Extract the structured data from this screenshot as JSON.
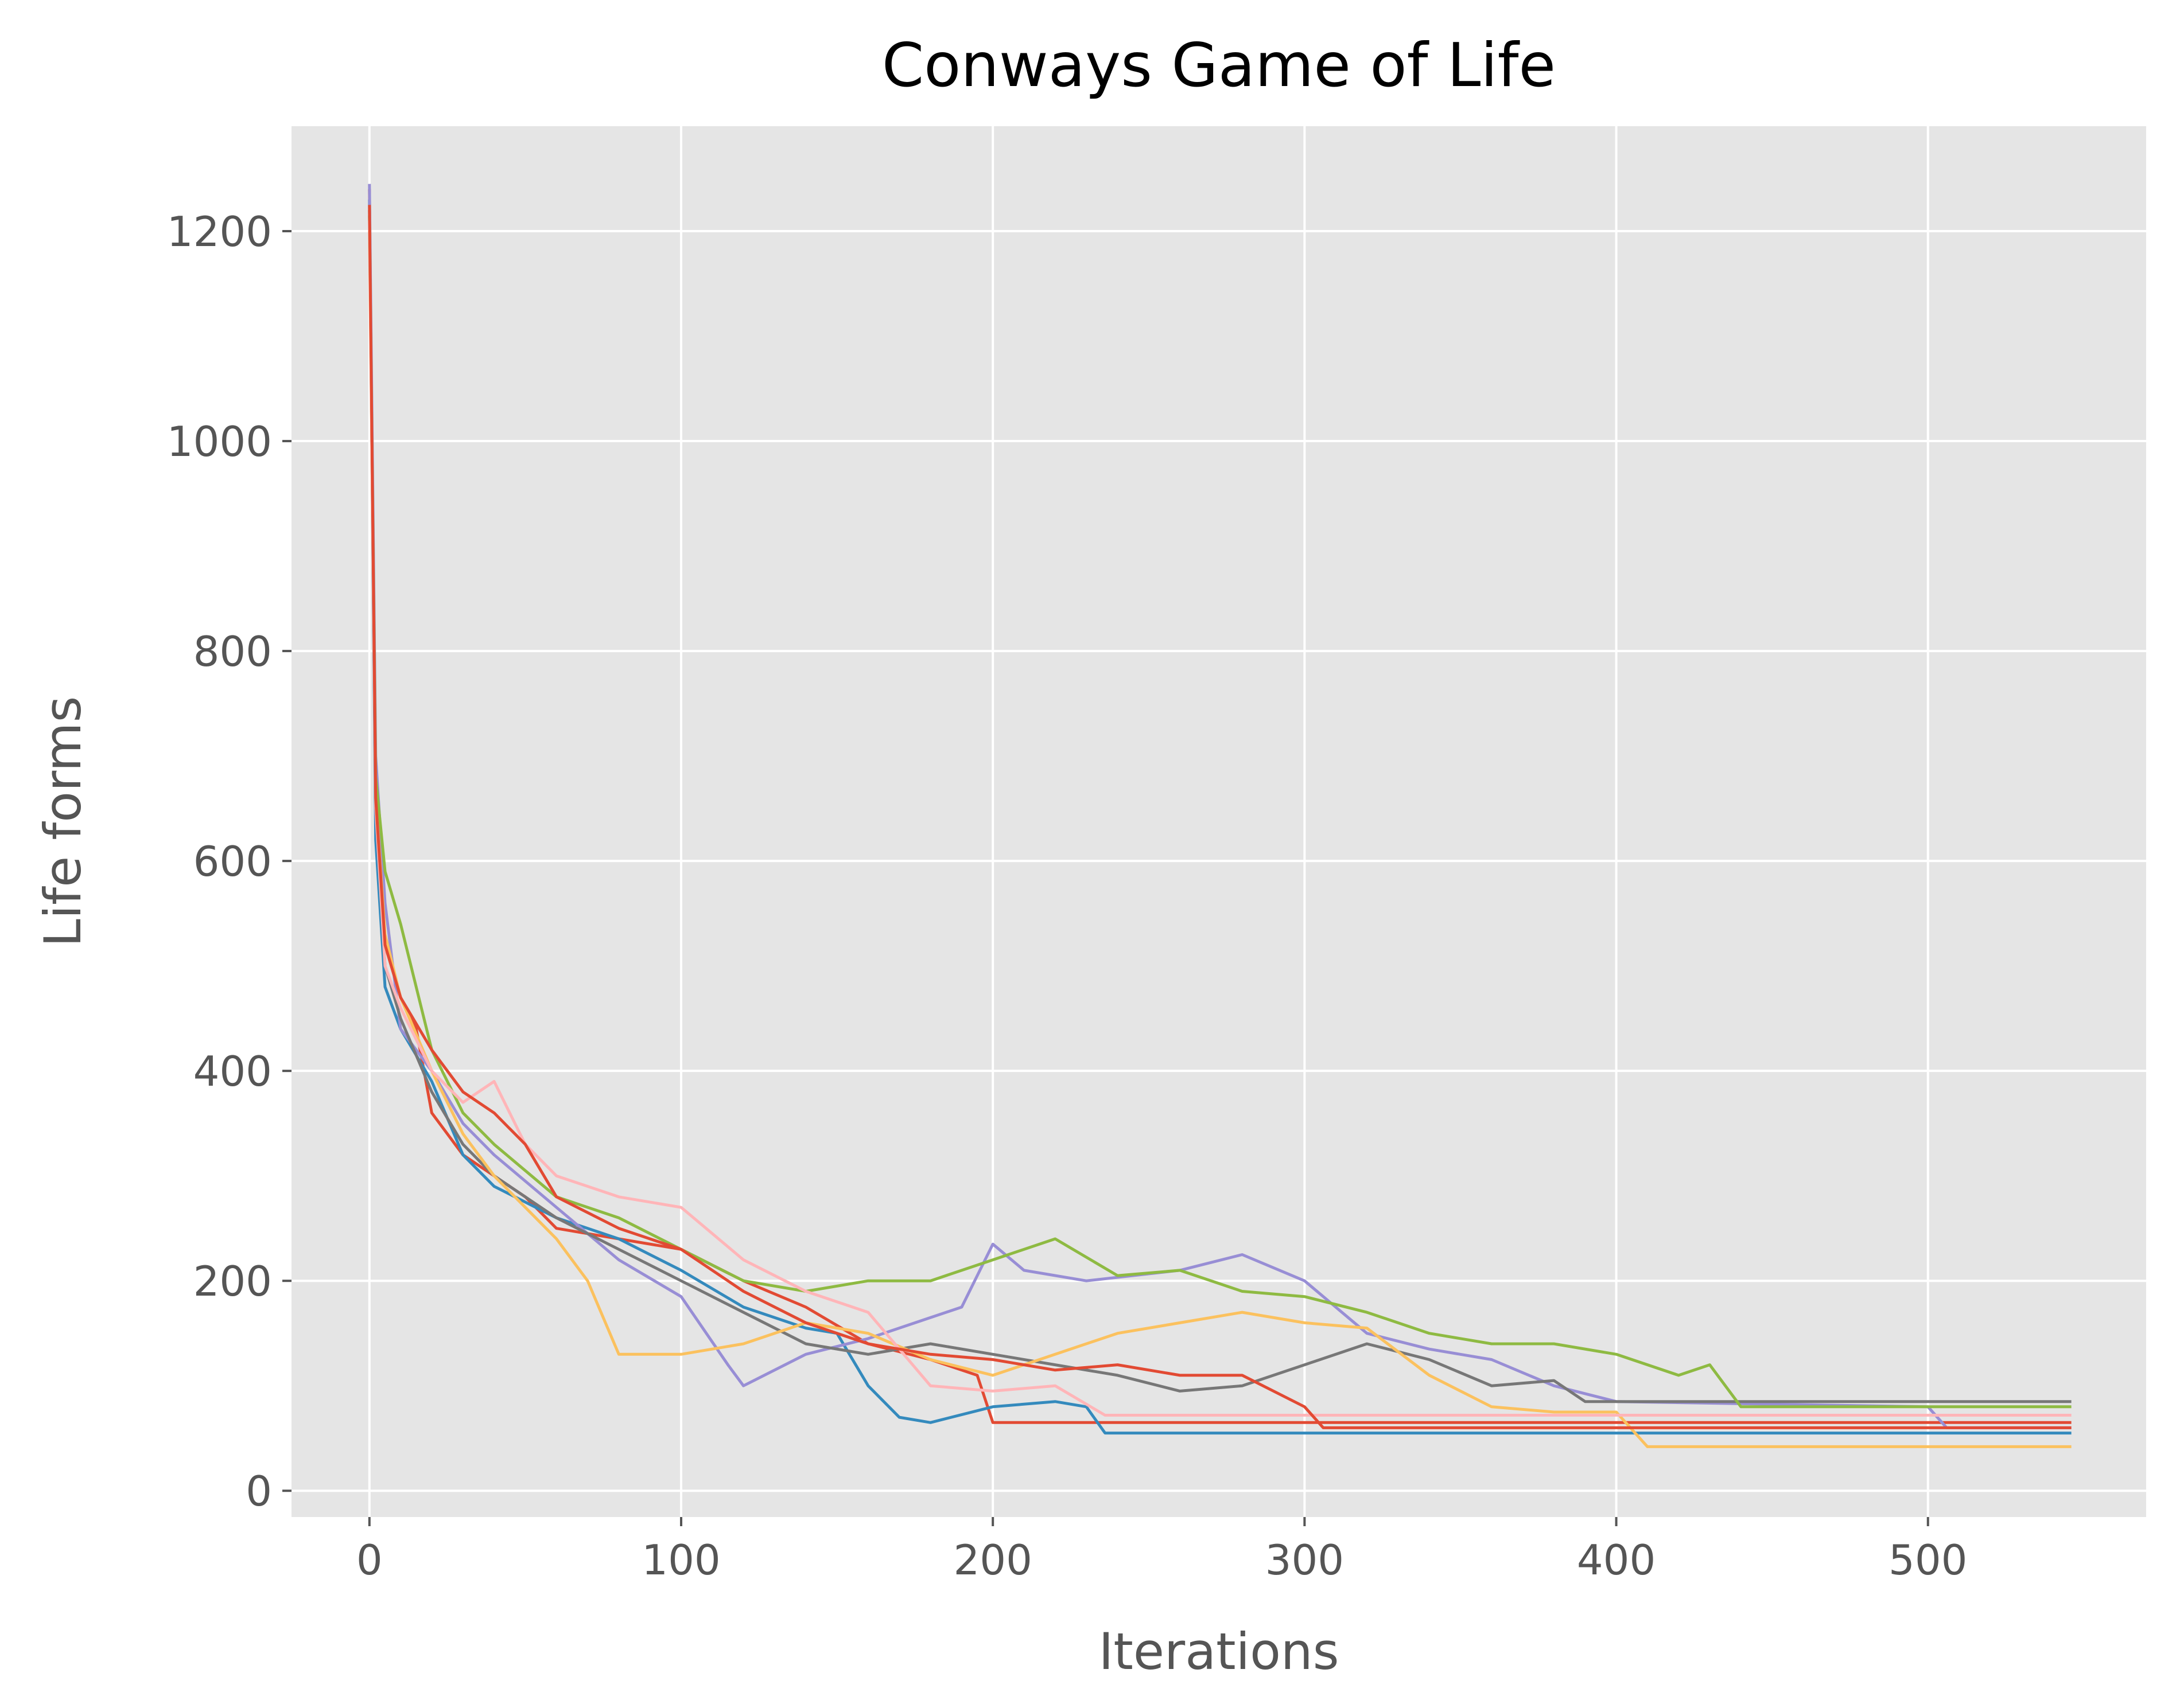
{
  "chart_data": {
    "type": "line",
    "title": "Conways Game of Life",
    "xlabel": "Iterations",
    "ylabel": "Life forms",
    "xlim": [
      -25,
      570
    ],
    "ylim": [
      -25,
      1300
    ],
    "xticks": [
      0,
      100,
      200,
      300,
      400,
      500
    ],
    "yticks": [
      0,
      200,
      400,
      600,
      800,
      1000,
      1200
    ],
    "grid": true,
    "legend": "none",
    "colors": {
      "plot_background": "#E5E5E5",
      "grid": "#FFFFFF",
      "tick_mark": "#555555",
      "figure_background": "#FFFFFF"
    },
    "series": [
      {
        "color": "#E24A33",
        "values": [
          [
            0,
            1240
          ],
          [
            2,
            640
          ],
          [
            5,
            520
          ],
          [
            10,
            470
          ],
          [
            15,
            440
          ],
          [
            20,
            360
          ],
          [
            30,
            320
          ],
          [
            40,
            300
          ],
          [
            50,
            280
          ],
          [
            60,
            250
          ],
          [
            80,
            240
          ],
          [
            100,
            230
          ],
          [
            120,
            200
          ],
          [
            140,
            175
          ],
          [
            160,
            140
          ],
          [
            180,
            125
          ],
          [
            195,
            110
          ],
          [
            200,
            65
          ],
          [
            230,
            65
          ],
          [
            546,
            65
          ]
        ]
      },
      {
        "color": "#348ABD",
        "values": [
          [
            0,
            1230
          ],
          [
            2,
            620
          ],
          [
            5,
            480
          ],
          [
            10,
            440
          ],
          [
            20,
            390
          ],
          [
            30,
            320
          ],
          [
            40,
            290
          ],
          [
            60,
            260
          ],
          [
            80,
            240
          ],
          [
            100,
            210
          ],
          [
            120,
            175
          ],
          [
            140,
            155
          ],
          [
            150,
            150
          ],
          [
            160,
            100
          ],
          [
            170,
            70
          ],
          [
            180,
            65
          ],
          [
            200,
            80
          ],
          [
            220,
            85
          ],
          [
            230,
            80
          ],
          [
            236,
            55
          ],
          [
            300,
            55
          ],
          [
            546,
            55
          ]
        ]
      },
      {
        "color": "#988ED5",
        "values": [
          [
            0,
            1245
          ],
          [
            2,
            700
          ],
          [
            5,
            560
          ],
          [
            10,
            440
          ],
          [
            20,
            400
          ],
          [
            30,
            350
          ],
          [
            40,
            320
          ],
          [
            60,
            270
          ],
          [
            80,
            220
          ],
          [
            100,
            185
          ],
          [
            115,
            120
          ],
          [
            120,
            100
          ],
          [
            140,
            130
          ],
          [
            160,
            145
          ],
          [
            180,
            165
          ],
          [
            190,
            175
          ],
          [
            200,
            235
          ],
          [
            210,
            210
          ],
          [
            230,
            200
          ],
          [
            260,
            210
          ],
          [
            280,
            225
          ],
          [
            300,
            200
          ],
          [
            310,
            175
          ],
          [
            320,
            150
          ],
          [
            340,
            135
          ],
          [
            360,
            125
          ],
          [
            380,
            100
          ],
          [
            400,
            85
          ],
          [
            500,
            80
          ],
          [
            506,
            60
          ],
          [
            546,
            60
          ]
        ]
      },
      {
        "color": "#777777",
        "values": [
          [
            0,
            1220
          ],
          [
            2,
            650
          ],
          [
            5,
            500
          ],
          [
            10,
            450
          ],
          [
            20,
            380
          ],
          [
            30,
            330
          ],
          [
            40,
            300
          ],
          [
            60,
            260
          ],
          [
            80,
            230
          ],
          [
            100,
            200
          ],
          [
            120,
            170
          ],
          [
            140,
            140
          ],
          [
            160,
            130
          ],
          [
            180,
            140
          ],
          [
            200,
            130
          ],
          [
            220,
            120
          ],
          [
            240,
            110
          ],
          [
            260,
            95
          ],
          [
            280,
            100
          ],
          [
            300,
            120
          ],
          [
            320,
            140
          ],
          [
            340,
            125
          ],
          [
            360,
            100
          ],
          [
            380,
            105
          ],
          [
            390,
            85
          ],
          [
            546,
            85
          ]
        ]
      },
      {
        "color": "#FBC15E",
        "values": [
          [
            0,
            1200
          ],
          [
            2,
            660
          ],
          [
            5,
            530
          ],
          [
            10,
            470
          ],
          [
            20,
            400
          ],
          [
            30,
            340
          ],
          [
            40,
            300
          ],
          [
            60,
            240
          ],
          [
            70,
            200
          ],
          [
            80,
            130
          ],
          [
            100,
            130
          ],
          [
            120,
            140
          ],
          [
            140,
            160
          ],
          [
            160,
            150
          ],
          [
            180,
            125
          ],
          [
            200,
            110
          ],
          [
            220,
            130
          ],
          [
            240,
            150
          ],
          [
            260,
            160
          ],
          [
            280,
            170
          ],
          [
            300,
            160
          ],
          [
            320,
            155
          ],
          [
            340,
            110
          ],
          [
            360,
            80
          ],
          [
            380,
            75
          ],
          [
            400,
            75
          ],
          [
            410,
            42
          ],
          [
            546,
            42
          ]
        ]
      },
      {
        "color": "#8EBA42",
        "values": [
          [
            0,
            1215
          ],
          [
            2,
            680
          ],
          [
            5,
            590
          ],
          [
            10,
            540
          ],
          [
            20,
            420
          ],
          [
            30,
            360
          ],
          [
            40,
            330
          ],
          [
            60,
            280
          ],
          [
            80,
            260
          ],
          [
            100,
            230
          ],
          [
            120,
            200
          ],
          [
            140,
            190
          ],
          [
            160,
            200
          ],
          [
            180,
            200
          ],
          [
            200,
            220
          ],
          [
            220,
            240
          ],
          [
            240,
            205
          ],
          [
            260,
            210
          ],
          [
            280,
            190
          ],
          [
            300,
            185
          ],
          [
            320,
            170
          ],
          [
            340,
            150
          ],
          [
            360,
            140
          ],
          [
            380,
            140
          ],
          [
            400,
            130
          ],
          [
            420,
            110
          ],
          [
            430,
            120
          ],
          [
            440,
            80
          ],
          [
            546,
            80
          ]
        ]
      },
      {
        "color": "#FFB5B8",
        "values": [
          [
            0,
            1210
          ],
          [
            2,
            650
          ],
          [
            5,
            500
          ],
          [
            10,
            460
          ],
          [
            20,
            400
          ],
          [
            30,
            370
          ],
          [
            40,
            390
          ],
          [
            50,
            330
          ],
          [
            60,
            300
          ],
          [
            80,
            280
          ],
          [
            100,
            270
          ],
          [
            120,
            220
          ],
          [
            140,
            190
          ],
          [
            160,
            170
          ],
          [
            180,
            100
          ],
          [
            200,
            95
          ],
          [
            220,
            100
          ],
          [
            236,
            72
          ],
          [
            546,
            72
          ]
        ]
      },
      {
        "color": "#E24A33",
        "values": [
          [
            0,
            1225
          ],
          [
            2,
            660
          ],
          [
            5,
            520
          ],
          [
            10,
            470
          ],
          [
            20,
            420
          ],
          [
            30,
            380
          ],
          [
            40,
            360
          ],
          [
            50,
            330
          ],
          [
            60,
            280
          ],
          [
            80,
            250
          ],
          [
            100,
            230
          ],
          [
            120,
            190
          ],
          [
            140,
            160
          ],
          [
            160,
            140
          ],
          [
            180,
            130
          ],
          [
            200,
            125
          ],
          [
            220,
            115
          ],
          [
            240,
            120
          ],
          [
            260,
            110
          ],
          [
            280,
            110
          ],
          [
            300,
            80
          ],
          [
            306,
            60
          ],
          [
            546,
            60
          ]
        ]
      }
    ]
  }
}
